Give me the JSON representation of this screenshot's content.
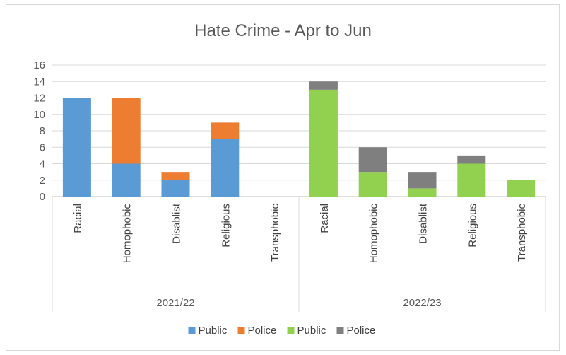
{
  "chart_data": {
    "type": "bar",
    "stacked": true,
    "title": "Hate Crime - Apr to Jun",
    "ylim": [
      0,
      16
    ],
    "yticks": [
      0,
      2,
      4,
      6,
      8,
      10,
      12,
      14,
      16
    ],
    "grid": true,
    "legend_position": "bottom",
    "groups": [
      {
        "label": "2021/22",
        "categories": [
          "Racial",
          "Homophobic",
          "Disablist",
          "Religious",
          "Transphobic"
        ],
        "series": [
          {
            "name": "Public",
            "color": "#5b9bd5",
            "values": [
              12,
              4,
              2,
              7,
              0
            ]
          },
          {
            "name": "Police",
            "color": "#ed7d31",
            "values": [
              0,
              8,
              1,
              2,
              0
            ]
          }
        ]
      },
      {
        "label": "2022/23",
        "categories": [
          "Racial",
          "Homophobic",
          "Disablist",
          "Religious",
          "Transphobic"
        ],
        "series": [
          {
            "name": "Public",
            "color": "#92d050",
            "values": [
              13,
              3,
              1,
              4,
              2
            ]
          },
          {
            "name": "Police",
            "color": "#7f7f7f",
            "values": [
              1,
              3,
              2,
              1,
              0
            ]
          }
        ]
      }
    ],
    "legend": [
      {
        "name": "Public",
        "color": "#5b9bd5"
      },
      {
        "name": "Police",
        "color": "#ed7d31"
      },
      {
        "name": "Public",
        "color": "#92d050"
      },
      {
        "name": "Police",
        "color": "#7f7f7f"
      }
    ]
  }
}
